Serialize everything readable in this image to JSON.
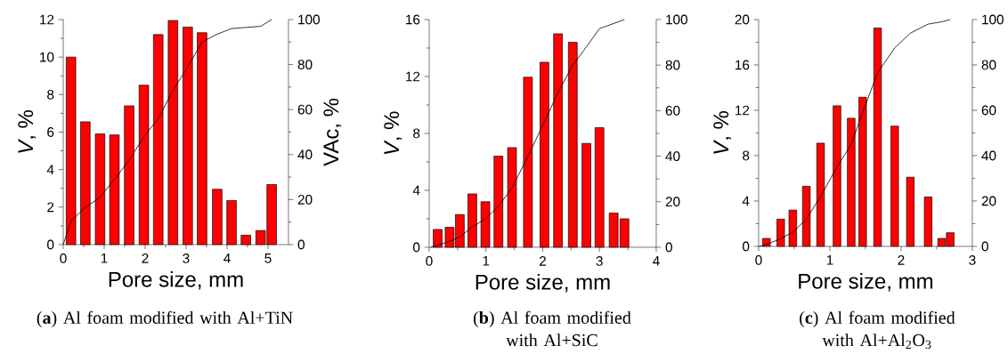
{
  "chart_data": [
    {
      "type": "bar",
      "xlabel": "Pore size, mm",
      "ylabel": "*V*, %",
      "y2label": "VAc, %",
      "xlim": [
        0,
        5.5
      ],
      "xticks": [
        0,
        1,
        2,
        3,
        4,
        5
      ],
      "ylim": [
        0,
        12
      ],
      "yticks": [
        0,
        2,
        4,
        6,
        8,
        10,
        12
      ],
      "y2lim": [
        0,
        100
      ],
      "y2ticks": [
        0,
        20,
        40,
        60,
        80,
        100
      ],
      "series": [
        {
          "type": "bar",
          "color": "#ff0000",
          "x": [
            0.19,
            0.54,
            0.9,
            1.25,
            1.61,
            1.97,
            2.32,
            2.68,
            3.04,
            3.39,
            3.76,
            4.11,
            4.46,
            4.82,
            5.09
          ],
          "values": [
            10.0,
            6.55,
            5.9,
            5.85,
            7.4,
            8.5,
            11.2,
            11.95,
            11.6,
            11.3,
            2.95,
            2.35,
            0.5,
            0.75,
            3.2
          ]
        },
        {
          "type": "line",
          "color": "#000000",
          "axis": "y2",
          "x": [
            0,
            0.19,
            0.54,
            0.9,
            1.25,
            1.61,
            1.97,
            2.32,
            2.68,
            3.04,
            3.39,
            3.76,
            4.11,
            4.82,
            5.09
          ],
          "values": [
            0,
            10.5,
            16.5,
            21,
            29,
            37.5,
            48,
            56,
            68.5,
            79,
            90,
            93.5,
            96,
            97,
            100
          ]
        }
      ],
      "annotations": [
        "(**a**) Al foam modified with Al+TiN"
      ]
    },
    {
      "type": "bar",
      "xlabel": "Pore size, mm",
      "ylabel": "*V*, %",
      "xlim": [
        0,
        4
      ],
      "xticks": [
        0,
        1,
        2,
        3,
        4
      ],
      "ylim": [
        0,
        16
      ],
      "yticks": [
        0,
        4,
        8,
        12,
        16
      ],
      "y2lim": [
        0,
        100
      ],
      "y2ticks": [
        0,
        20,
        40,
        60,
        80,
        100
      ],
      "series": [
        {
          "type": "bar",
          "color": "#ff0000",
          "x": [
            0.15,
            0.36,
            0.54,
            0.76,
            0.99,
            1.22,
            1.46,
            1.74,
            2.03,
            2.27,
            2.53,
            2.77,
            3.0,
            3.25,
            3.44
          ],
          "values": [
            1.25,
            1.4,
            2.3,
            3.75,
            3.2,
            6.4,
            7.0,
            11.95,
            13.0,
            15.0,
            14.4,
            7.3,
            8.4,
            2.4,
            2.0
          ]
        },
        {
          "type": "line",
          "color": "#000000",
          "axis": "y2",
          "x": [
            0.03,
            0.36,
            0.54,
            0.76,
            0.99,
            1.22,
            1.46,
            1.74,
            2.03,
            2.27,
            2.53,
            2.77,
            3.0,
            3.44
          ],
          "values": [
            0,
            2.6,
            4.5,
            9,
            12.4,
            18,
            26,
            40,
            55,
            68,
            80,
            88,
            96,
            100
          ]
        }
      ],
      "annotations": [
        "(**b**) Al foam modified with Al+SiC"
      ]
    },
    {
      "type": "bar",
      "xlabel": "Pore size, mm",
      "ylabel": "*V*, %",
      "xlim": [
        0,
        3
      ],
      "xticks": [
        0,
        1,
        2,
        3
      ],
      "ylim": [
        0,
        20
      ],
      "yticks": [
        0,
        4,
        8,
        12,
        16,
        20
      ],
      "y2lim": [
        0,
        100
      ],
      "y2ticks": [
        0,
        20,
        40,
        60,
        80,
        100
      ],
      "series": [
        {
          "type": "bar",
          "color": "#ff0000",
          "x": [
            0.11,
            0.31,
            0.48,
            0.67,
            0.87,
            1.1,
            1.3,
            1.46,
            1.67,
            1.91,
            2.13,
            2.38,
            2.57,
            2.69
          ],
          "values": [
            0.7,
            2.4,
            3.2,
            5.3,
            9.1,
            12.4,
            11.3,
            13.15,
            19.25,
            10.6,
            6.1,
            4.35,
            0.7,
            1.2
          ]
        },
        {
          "type": "line",
          "color": "#000000",
          "axis": "y2",
          "x": [
            0.01,
            0.11,
            0.31,
            0.48,
            0.67,
            0.87,
            1.1,
            1.3,
            1.46,
            1.67,
            1.91,
            2.13,
            2.38,
            2.57,
            2.69
          ],
          "values": [
            0,
            0.8,
            3.4,
            6.3,
            12,
            22,
            35,
            45,
            59,
            76.5,
            87.5,
            94,
            98,
            99,
            100
          ]
        }
      ],
      "annotations": [
        "(**c**) Al foam modified with Al+Al$_{2}$O$_{3}$"
      ]
    }
  ]
}
